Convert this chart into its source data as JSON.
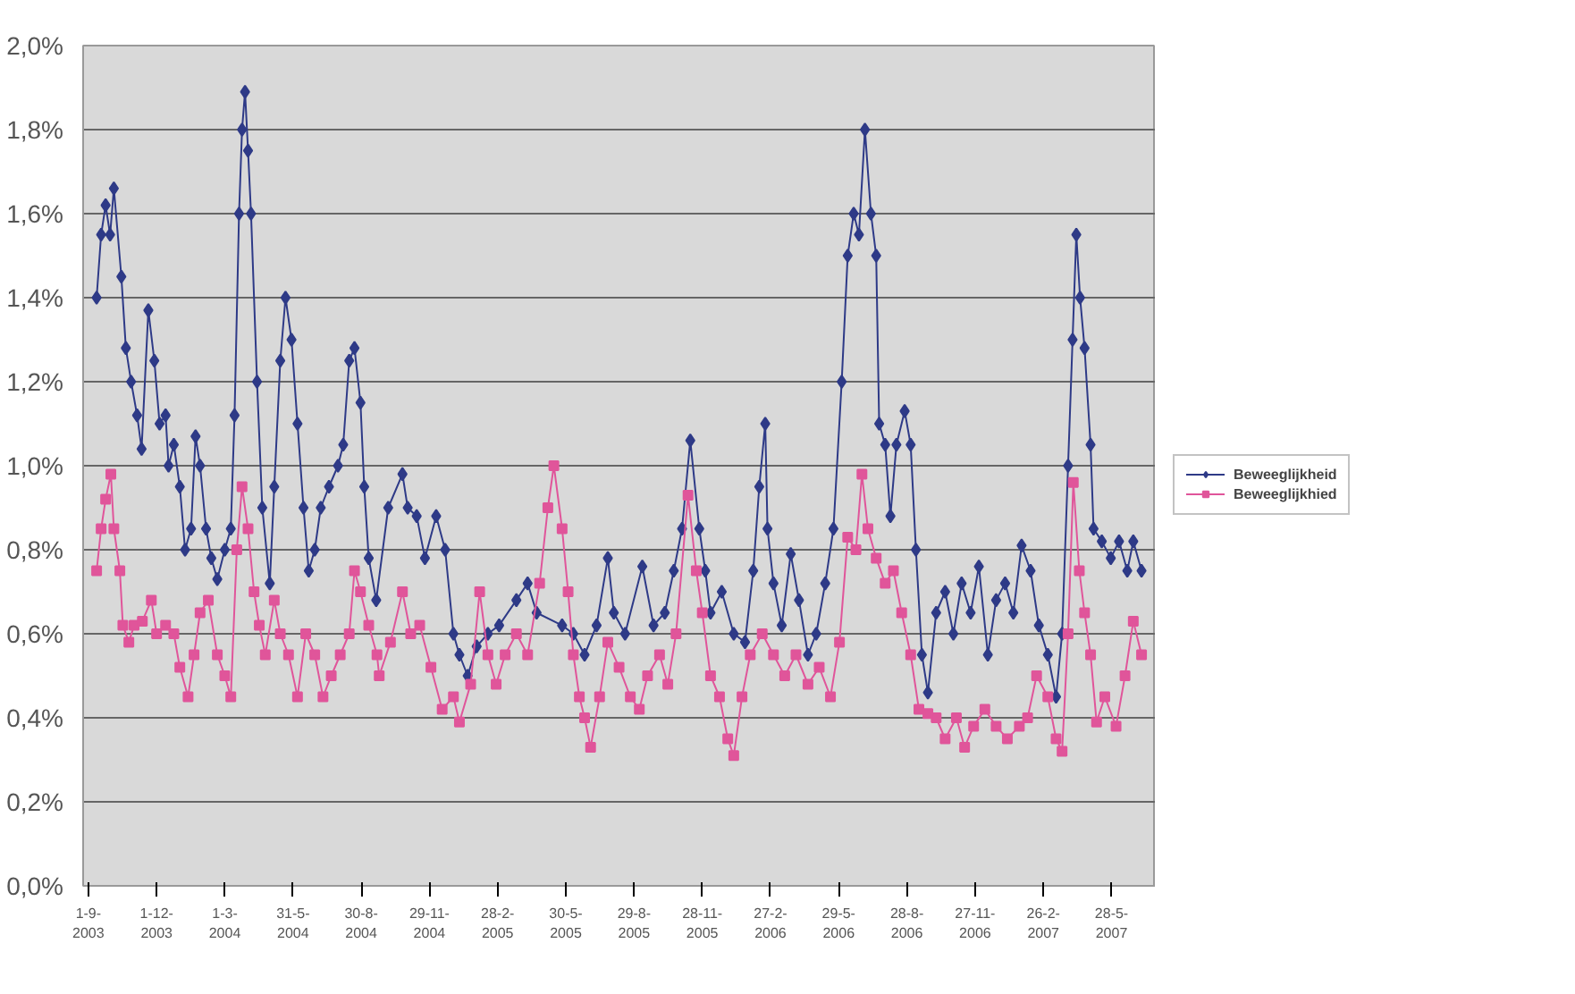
{
  "chart_data": {
    "type": "line",
    "legend": "right",
    "grid": "y",
    "line_style": "solid",
    "xlim": [
      "2003-08-25",
      "2007-07-26"
    ],
    "xticks": [
      {
        "value": "2003-09-01",
        "label": "1-9-2003"
      },
      {
        "value": "2003-12-01",
        "label": "1-12-2003"
      },
      {
        "value": "2004-03-01",
        "label": "1-3-2004"
      },
      {
        "value": "2004-05-31",
        "label": "31-5-2004"
      },
      {
        "value": "2004-08-30",
        "label": "30-8-2004"
      },
      {
        "value": "2004-11-29",
        "label": "29-11-2004"
      },
      {
        "value": "2005-02-28",
        "label": "28-2-2005"
      },
      {
        "value": "2005-05-30",
        "label": "30-5-2005"
      },
      {
        "value": "2005-08-29",
        "label": "29-8-2005"
      },
      {
        "value": "2005-11-28",
        "label": "28-11-2005"
      },
      {
        "value": "2006-02-27",
        "label": "27-2-2006"
      },
      {
        "value": "2006-05-29",
        "label": "29-5-2006"
      },
      {
        "value": "2006-08-28",
        "label": "28-8-2006"
      },
      {
        "value": "2006-11-27",
        "label": "27-11-2006"
      },
      {
        "value": "2007-02-26",
        "label": "26-2-2007"
      },
      {
        "value": "2007-05-28",
        "label": "28-5-2007"
      }
    ],
    "ylim": [
      0,
      2
    ],
    "yticks": [
      {
        "value": 0,
        "label": "0,0%"
      },
      {
        "value": 0.2,
        "label": "0,2%"
      },
      {
        "value": 0.4,
        "label": "0,4%"
      },
      {
        "value": 0.6,
        "label": "0,6%"
      },
      {
        "value": 0.8,
        "label": "0,8%"
      },
      {
        "value": 1.0,
        "label": "1,0%"
      },
      {
        "value": 1.2,
        "label": "1,2%"
      },
      {
        "value": 1.4,
        "label": "1,4%"
      },
      {
        "value": 1.6,
        "label": "1,6%"
      },
      {
        "value": 1.8,
        "label": "1,8%"
      },
      {
        "value": 2.0,
        "label": "2,0%"
      }
    ],
    "series": [
      {
        "name": "Beweeglijkheid",
        "color": "#2e3a87",
        "marker": "diamond",
        "x": [
          "2003-09-12",
          "2003-09-18",
          "2003-09-24",
          "2003-09-30",
          "2003-10-05",
          "2003-10-15",
          "2003-10-21",
          "2003-10-28",
          "2003-11-05",
          "2003-11-11",
          "2003-11-20",
          "2003-11-28",
          "2003-12-05",
          "2003-12-13",
          "2003-12-17",
          "2003-12-24",
          "2004-01-01",
          "2004-01-08",
          "2004-01-16",
          "2004-01-22",
          "2004-01-28",
          "2004-02-05",
          "2004-02-12",
          "2004-02-20",
          "2004-03-01",
          "2004-03-09",
          "2004-03-14",
          "2004-03-20",
          "2004-03-24",
          "2004-03-28",
          "2004-04-01",
          "2004-04-05",
          "2004-04-13",
          "2004-04-20",
          "2004-04-30",
          "2004-05-06",
          "2004-05-14",
          "2004-05-21",
          "2004-05-29",
          "2004-06-06",
          "2004-06-14",
          "2004-06-21",
          "2004-06-29",
          "2004-07-07",
          "2004-07-18",
          "2004-07-30",
          "2004-08-06",
          "2004-08-14",
          "2004-08-21",
          "2004-08-29",
          "2004-09-03",
          "2004-09-09",
          "2004-09-19",
          "2004-10-05",
          "2004-10-24",
          "2004-10-31",
          "2004-11-12",
          "2004-11-23",
          "2004-12-08",
          "2004-12-20",
          "2004-12-31",
          "2005-01-08",
          "2005-01-19",
          "2005-01-31",
          "2005-02-15",
          "2005-03-02",
          "2005-03-25",
          "2005-04-09",
          "2005-04-21",
          "2005-05-25",
          "2005-06-09",
          "2005-06-24",
          "2005-07-10",
          "2005-07-25",
          "2005-08-02",
          "2005-08-17",
          "2005-09-09",
          "2005-09-24",
          "2005-10-09",
          "2005-10-21",
          "2005-11-01",
          "2005-11-12",
          "2005-11-24",
          "2005-12-02",
          "2005-12-09",
          "2005-12-24",
          "2006-01-09",
          "2006-01-24",
          "2006-02-04",
          "2006-02-12",
          "2006-02-20",
          "2006-02-23",
          "2006-03-03",
          "2006-03-14",
          "2006-03-26",
          "2006-04-06",
          "2006-04-18",
          "2006-04-29",
          "2006-05-11",
          "2006-05-22",
          "2006-06-02",
          "2006-06-10",
          "2006-06-18",
          "2006-06-25",
          "2006-07-03",
          "2006-07-11",
          "2006-07-18",
          "2006-07-22",
          "2006-07-30",
          "2006-08-06",
          "2006-08-14",
          "2006-08-25",
          "2006-09-02",
          "2006-09-09",
          "2006-09-17",
          "2006-09-25",
          "2006-10-06",
          "2006-10-18",
          "2006-10-29",
          "2006-11-09",
          "2006-11-21",
          "2006-12-02",
          "2006-12-14",
          "2006-12-25",
          "2007-01-06",
          "2007-01-17",
          "2007-01-28",
          "2007-02-09",
          "2007-02-20",
          "2007-03-04",
          "2007-03-15",
          "2007-03-23",
          "2007-03-31",
          "2007-04-06",
          "2007-04-11",
          "2007-04-16",
          "2007-04-22",
          "2007-04-30",
          "2007-05-04",
          "2007-05-15",
          "2007-05-27",
          "2007-06-07",
          "2007-06-18",
          "2007-06-26",
          "2007-07-07"
        ],
        "values": [
          1.4,
          1.55,
          1.62,
          1.55,
          1.66,
          1.45,
          1.28,
          1.2,
          1.12,
          1.04,
          1.37,
          1.25,
          1.1,
          1.12,
          1.0,
          1.05,
          0.95,
          0.8,
          0.85,
          1.07,
          1.0,
          0.85,
          0.78,
          0.73,
          0.8,
          0.85,
          1.12,
          1.6,
          1.8,
          1.89,
          1.75,
          1.6,
          1.2,
          0.9,
          0.72,
          0.95,
          1.25,
          1.4,
          1.3,
          1.1,
          0.9,
          0.75,
          0.8,
          0.9,
          0.95,
          1.0,
          1.05,
          1.25,
          1.28,
          1.15,
          0.95,
          0.78,
          0.68,
          0.9,
          0.98,
          0.9,
          0.88,
          0.78,
          0.88,
          0.8,
          0.6,
          0.55,
          0.5,
          0.57,
          0.6,
          0.62,
          0.68,
          0.72,
          0.65,
          0.62,
          0.6,
          0.55,
          0.62,
          0.78,
          0.65,
          0.6,
          0.76,
          0.62,
          0.65,
          0.75,
          0.85,
          1.06,
          0.85,
          0.75,
          0.65,
          0.7,
          0.6,
          0.58,
          0.75,
          0.95,
          1.1,
          0.85,
          0.72,
          0.62,
          0.79,
          0.68,
          0.55,
          0.6,
          0.72,
          0.85,
          1.2,
          1.5,
          1.6,
          1.55,
          1.8,
          1.6,
          1.5,
          1.1,
          1.05,
          0.88,
          1.05,
          1.13,
          1.05,
          0.8,
          0.55,
          0.46,
          0.65,
          0.7,
          0.6,
          0.72,
          0.65,
          0.76,
          0.55,
          0.68,
          0.72,
          0.65,
          0.81,
          0.75,
          0.62,
          0.55,
          0.45,
          0.6,
          1.0,
          1.3,
          1.55,
          1.4,
          1.28,
          1.05,
          0.85,
          0.82,
          0.78,
          0.82,
          0.75,
          0.82,
          0.75
        ]
      },
      {
        "name": "Beweeglijkhied",
        "color": "#e0559a",
        "marker": "square",
        "x": [
          "2003-09-12",
          "2003-09-18",
          "2003-09-24",
          "2003-10-01",
          "2003-10-05",
          "2003-10-13",
          "2003-10-17",
          "2003-10-25",
          "2003-11-01",
          "2003-11-12",
          "2003-11-24",
          "2003-12-01",
          "2003-12-13",
          "2003-12-24",
          "2004-01-01",
          "2004-01-12",
          "2004-01-20",
          "2004-01-28",
          "2004-02-08",
          "2004-02-20",
          "2004-03-01",
          "2004-03-09",
          "2004-03-17",
          "2004-03-24",
          "2004-04-01",
          "2004-04-09",
          "2004-04-16",
          "2004-04-24",
          "2004-05-06",
          "2004-05-14",
          "2004-05-25",
          "2004-06-06",
          "2004-06-17",
          "2004-06-29",
          "2004-07-10",
          "2004-07-21",
          "2004-08-02",
          "2004-08-14",
          "2004-08-21",
          "2004-08-29",
          "2004-09-09",
          "2004-09-20",
          "2004-09-23",
          "2004-10-08",
          "2004-10-24",
          "2004-11-04",
          "2004-11-16",
          "2004-12-01",
          "2004-12-16",
          "2004-12-31",
          "2005-01-08",
          "2005-01-23",
          "2005-02-04",
          "2005-02-15",
          "2005-02-26",
          "2005-03-10",
          "2005-03-25",
          "2005-04-09",
          "2005-04-25",
          "2005-05-06",
          "2005-05-14",
          "2005-05-25",
          "2005-06-02",
          "2005-06-09",
          "2005-06-17",
          "2005-06-24",
          "2005-07-02",
          "2005-07-14",
          "2005-07-25",
          "2005-08-09",
          "2005-08-24",
          "2005-09-05",
          "2005-09-16",
          "2005-10-02",
          "2005-10-13",
          "2005-10-24",
          "2005-11-09",
          "2005-11-20",
          "2005-11-28",
          "2005-12-09",
          "2005-12-21",
          "2006-01-01",
          "2006-01-09",
          "2006-01-20",
          "2006-01-31",
          "2006-02-16",
          "2006-03-03",
          "2006-03-18",
          "2006-04-02",
          "2006-04-18",
          "2006-05-03",
          "2006-05-18",
          "2006-05-30",
          "2006-06-10",
          "2006-06-21",
          "2006-06-29",
          "2006-07-07",
          "2006-07-18",
          "2006-07-30",
          "2006-08-10",
          "2006-08-21",
          "2006-09-02",
          "2006-09-13",
          "2006-09-25",
          "2006-10-06",
          "2006-10-18",
          "2006-11-02",
          "2006-11-13",
          "2006-11-25",
          "2006-12-10",
          "2006-12-25",
          "2007-01-09",
          "2007-01-25",
          "2007-02-05",
          "2007-02-17",
          "2007-03-04",
          "2007-03-15",
          "2007-03-23",
          "2007-03-31",
          "2007-04-07",
          "2007-04-15",
          "2007-04-22",
          "2007-04-30",
          "2007-05-08",
          "2007-05-19",
          "2007-06-03",
          "2007-06-15",
          "2007-06-26",
          "2007-07-07"
        ],
        "values": [
          0.75,
          0.85,
          0.92,
          0.98,
          0.85,
          0.75,
          0.62,
          0.58,
          0.62,
          0.63,
          0.68,
          0.6,
          0.62,
          0.6,
          0.52,
          0.45,
          0.55,
          0.65,
          0.68,
          0.55,
          0.5,
          0.45,
          0.8,
          0.95,
          0.85,
          0.7,
          0.62,
          0.55,
          0.68,
          0.6,
          0.55,
          0.45,
          0.6,
          0.55,
          0.45,
          0.5,
          0.55,
          0.6,
          0.75,
          0.7,
          0.62,
          0.55,
          0.5,
          0.58,
          0.7,
          0.6,
          0.62,
          0.52,
          0.42,
          0.45,
          0.39,
          0.48,
          0.7,
          0.55,
          0.48,
          0.55,
          0.6,
          0.55,
          0.72,
          0.9,
          1.0,
          0.85,
          0.7,
          0.55,
          0.45,
          0.4,
          0.33,
          0.45,
          0.58,
          0.52,
          0.45,
          0.42,
          0.5,
          0.55,
          0.48,
          0.6,
          0.93,
          0.75,
          0.65,
          0.5,
          0.45,
          0.35,
          0.31,
          0.45,
          0.55,
          0.6,
          0.55,
          0.5,
          0.55,
          0.48,
          0.52,
          0.45,
          0.58,
          0.83,
          0.8,
          0.98,
          0.85,
          0.78,
          0.72,
          0.75,
          0.65,
          0.55,
          0.42,
          0.41,
          0.4,
          0.35,
          0.4,
          0.33,
          0.38,
          0.42,
          0.38,
          0.35,
          0.38,
          0.4,
          0.5,
          0.45,
          0.35,
          0.32,
          0.6,
          0.96,
          0.75,
          0.65,
          0.55,
          0.39,
          0.45,
          0.38,
          0.5,
          0.63,
          0.55
        ]
      }
    ]
  }
}
